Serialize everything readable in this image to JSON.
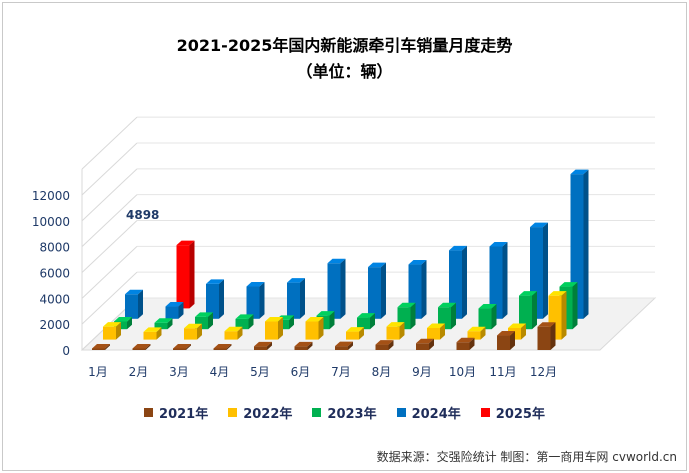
{
  "chart_data": {
    "type": "bar",
    "title": "2021-2025年国内新能源牵引车销量月度走势",
    "subtitle": "（单位：辆）",
    "categories": [
      "1月",
      "2月",
      "3月",
      "4月",
      "5月",
      "6月",
      "7月",
      "8月",
      "9月",
      "10月",
      "11月",
      "12月"
    ],
    "y_ticks": [
      "0",
      "2000",
      "4000",
      "6000",
      "8000",
      "10000",
      "12000"
    ],
    "ylim": [
      0,
      14000
    ],
    "series": [
      {
        "name": "2021年",
        "color": "#8B4513",
        "values": [
          30,
          40,
          110,
          120,
          280,
          280,
          300,
          420,
          520,
          600,
          1120,
          1800
        ]
      },
      {
        "name": "2022年",
        "color": "#FFC000",
        "values": [
          1000,
          600,
          880,
          650,
          1400,
          1400,
          620,
          1000,
          900,
          650,
          900,
          3400
        ]
      },
      {
        "name": "2023年",
        "color": "#00B050",
        "values": [
          600,
          500,
          950,
          800,
          720,
          1050,
          900,
          1700,
          1700,
          1600,
          2600,
          3300
        ]
      },
      {
        "name": "2024年",
        "color": "#0070C0",
        "values": [
          1900,
          950,
          2700,
          2500,
          2800,
          4300,
          4000,
          4200,
          5300,
          5600,
          7100,
          11200
        ]
      },
      {
        "name": "2025年",
        "color": "#FF0000",
        "values": [
          null,
          4898,
          null,
          null,
          null,
          null,
          null,
          null,
          null,
          null,
          null,
          null
        ]
      }
    ],
    "data_labels": [
      {
        "series": "2025年",
        "category": "2月",
        "text": "4898"
      }
    ],
    "legend_position": "bottom"
  },
  "source": "数据来源：交强险统计  制图：第一商用车网 cvworld.cn"
}
